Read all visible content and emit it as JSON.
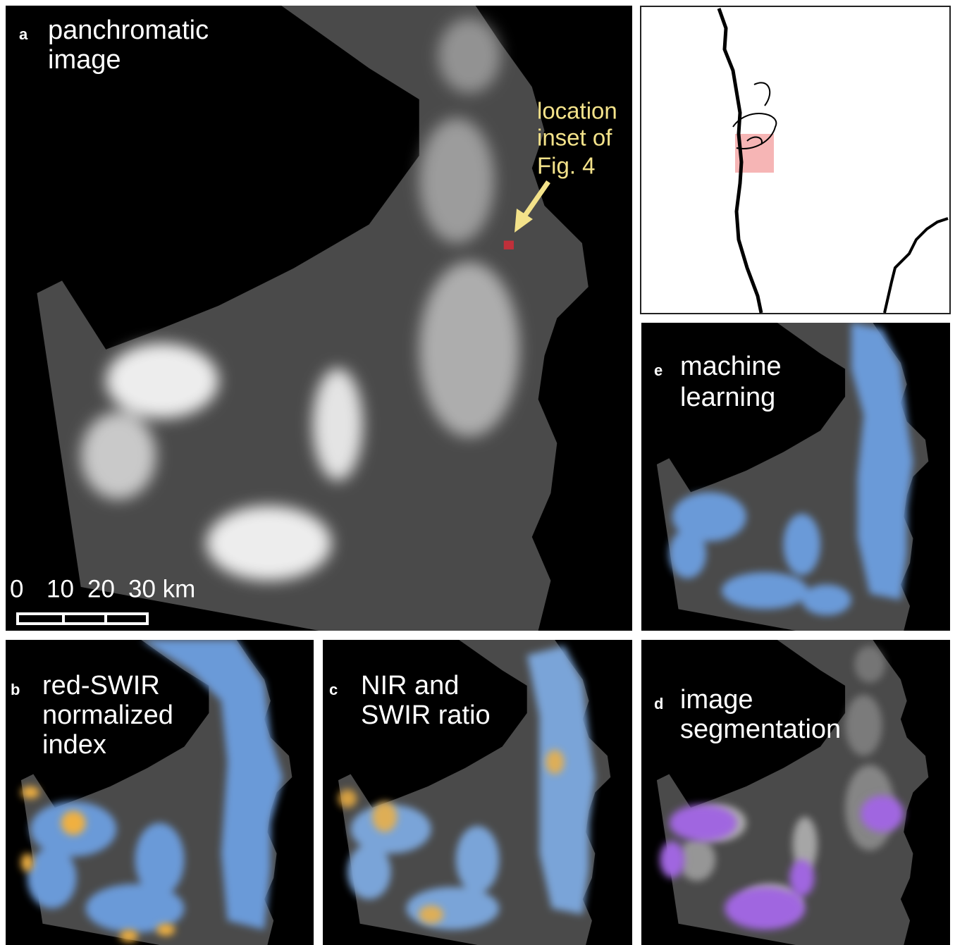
{
  "panels": [
    {
      "letter": "a",
      "title_lines": [
        "panchromatic",
        "image"
      ]
    },
    {
      "letter": "b",
      "title_lines": [
        "red-SWIR",
        "normalized",
        "index"
      ]
    },
    {
      "letter": "c",
      "title_lines": [
        "NIR and",
        "SWIR ratio"
      ]
    },
    {
      "letter": "d",
      "title_lines": [
        "image",
        "segmentation"
      ]
    },
    {
      "letter": "e",
      "title_lines": [
        "machine",
        "learning"
      ]
    }
  ],
  "annotation": {
    "lines": [
      "location",
      "inset of",
      "Fig. 4"
    ]
  },
  "scale_bar": {
    "labels": [
      "0",
      "10",
      "20",
      "30 km"
    ]
  }
}
